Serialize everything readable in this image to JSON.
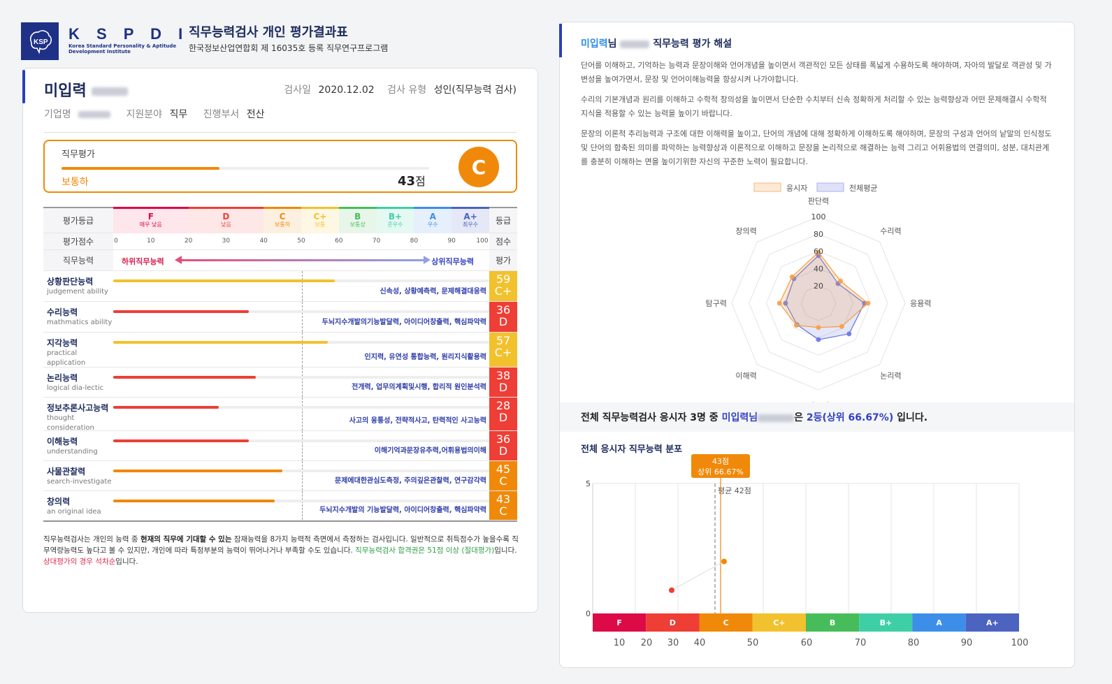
{
  "header": {
    "logo_text": "K S P D I",
    "logo_sub1": "Korea Standard Personality & Aptitude",
    "logo_sub2": "Development Institute",
    "title": "직무능력검사 개인 평가결과표",
    "subtitle": "한국정보산업연합회 제 16035호 등록 직무연구프로그램"
  },
  "profile": {
    "name": "미입력",
    "test_date_label": "검사일",
    "test_date": "2020.12.02",
    "test_type_label": "검사 유형",
    "test_type": "성인(직무능력 검사)",
    "company_label": "기업명",
    "field_label": "지원분야",
    "field": "직무",
    "dept_label": "진행부서",
    "dept": "전산"
  },
  "evaluation": {
    "title": "직무평가",
    "level": "보통하",
    "score": "43",
    "score_unit": "점",
    "score_pct": 43,
    "grade": "C",
    "color": "#f0890a"
  },
  "grade_table": {
    "row_labels": [
      "평가등급",
      "평가점수",
      "직무능력"
    ],
    "right_labels": [
      "등급",
      "점수",
      "평가"
    ],
    "grades": [
      {
        "g": "F",
        "desc": "매우 낮음",
        "from": 0,
        "to": 20,
        "color": "#dc0a46",
        "bg": "#fde6ec"
      },
      {
        "g": "D",
        "desc": "낮음",
        "from": 20,
        "to": 40,
        "color": "#ee3e36",
        "bg": "#fde8e7"
      },
      {
        "g": "C",
        "desc": "보통하",
        "from": 40,
        "to": 50,
        "color": "#f0890a",
        "bg": "#fdf0e1"
      },
      {
        "g": "C+",
        "desc": "보통",
        "from": 50,
        "to": 60,
        "color": "#f2c12e",
        "bg": "#fdf7e3"
      },
      {
        "g": "B",
        "desc": "보통상",
        "from": 60,
        "to": 70,
        "color": "#46bd5a",
        "bg": "#e8f6ea"
      },
      {
        "g": "B+",
        "desc": "준우수",
        "from": 70,
        "to": 80,
        "color": "#3fcfa6",
        "bg": "#e5f8f2"
      },
      {
        "g": "A",
        "desc": "우수",
        "from": 80,
        "to": 90,
        "color": "#3d8ee8",
        "bg": "#e6f0fc"
      },
      {
        "g": "A+",
        "desc": "최우수",
        "from": 90,
        "to": 100,
        "color": "#4c63bf",
        "bg": "#e5e8f6"
      }
    ],
    "ticks": [
      "0",
      "10",
      "20",
      "30",
      "40",
      "50",
      "60",
      "70",
      "80",
      "90",
      "100"
    ],
    "low_label": "하위직무능력",
    "high_label": "상위직무능력"
  },
  "skills": [
    {
      "ko": "상황판단능력",
      "en": "judgement ability",
      "score": 59,
      "grade": "C+",
      "color": "#f2c12e",
      "desc": "신속성, 상황예측력, 문제해결대응력"
    },
    {
      "ko": "수리능력",
      "en": "mathmatics ability",
      "score": 36,
      "grade": "D",
      "color": "#ee3e36",
      "desc": "두뇌지수개발의기능발달력, 아이디어창출력, 핵심파악력"
    },
    {
      "ko": "지각능력",
      "en": "practical application",
      "score": 57,
      "grade": "C+",
      "color": "#f2c12e",
      "desc": "인지력, 유연성 통합능력, 원리지식활용력"
    },
    {
      "ko": "논리능력",
      "en": "logical dia-lectic",
      "score": 38,
      "grade": "D",
      "color": "#ee3e36",
      "desc": "전개력, 업무의계획및시행, 합리적 원인분석력"
    },
    {
      "ko": "정보추론사고능력",
      "en": "thought consideration",
      "score": 28,
      "grade": "D",
      "color": "#ee3e36",
      "desc": "사고의 융통성, 전략적사고, 탄력적인 사고능력"
    },
    {
      "ko": "이해능력",
      "en": "understanding",
      "score": 36,
      "grade": "D",
      "color": "#ee3e36",
      "desc": "이해기억과문장유추력,어휘용법의이해"
    },
    {
      "ko": "사물관찰력",
      "en": "search-investigate",
      "score": 45,
      "grade": "C",
      "color": "#f0890a",
      "desc": "문제에대한관심도측정, 주의깊은관찰력, 연구감각력"
    },
    {
      "ko": "창의력",
      "en": "an original idea",
      "score": 43,
      "grade": "C",
      "color": "#f0890a",
      "desc": "두뇌지수개발의 기능발달력, 아이디어창출력, 핵심파악력"
    }
  ],
  "footnote": {
    "p1": "직무능력검사는 개인의 능력 중 ",
    "p1_bold": "현재의 직무에 기대할 수 있는",
    "p2": " 잠재능력을 8가지 능력적 측면에서 측정하는 검사입니다. 일반적으로 취득점수가 높을수록 직무역량능력도 높다고 볼 수 있지만, 개인에 따라 특정부분의 능력이 뛰어나거나 부족할 수도 있습니다. ",
    "green": "직무능력검사 합격권은 51점 이상 (절대평가)",
    "p3": "입니다. ",
    "red": "상대평가의 경우 석차순",
    "p4": "입니다."
  },
  "interpretation": {
    "name": "미입력",
    "suffix": "님",
    "title": "직무능력 평가 해설",
    "paragraphs": [
      "단어를 이해하고, 기억하는 능력과 문장이해와 언어개념을 높이면서 객관적인 모든 상태를 폭넓게 수용하도록 해야하며, 자아의 발달로 객관성 및 가변성을 높여가면서, 문장 및 언어이해능력을 향상시켜 나가야합니다.",
      "수리의 기본개념과 원리를 이해하고 수학적 창의성을 높이면서 단순한 수치부터 신속 정확하게 처리할 수 있는 능력향상과 어떤 문제해결시 수학적 지식을 적용할 수 있는 능력을 높이기 바랍니다.",
      "문장의 이론적 추리능력과 구조에 대한 이해력을 높이고, 단어의 개념에 대해 정확하게 이해하도록 해야하며, 문장의 구성과 언어의 낱말의 인식정도 및 단어의 함축된 의미를 파악하는 능력향상과 이론적으로 이해하고 문장을 논리적으로 해결하는 능력 그리고 어휘용법의 연결의미, 성분, 대치관계를 충분히 이해하는 면을 높이기위한 자신의 꾸준한 노력이 필요합니다."
    ]
  },
  "rank": {
    "prefix": "전체 직무능력검사 응시자 3명 중 ",
    "name": "미입력님",
    "mid": "은 ",
    "rank": "2등(상위 66.67%)",
    "suffix": " 입니다."
  },
  "distribution": {
    "title": "전체 응시자 직무능력 분포",
    "tooltip_score": "43점",
    "tooltip_rank": "상위 66.67%",
    "avg_label": "평균 42점"
  },
  "chart_data": [
    {
      "type": "radar",
      "title": "",
      "legend": [
        "응시자",
        "전체평균"
      ],
      "categories": [
        "판단력",
        "수리력",
        "응용력",
        "논리력",
        "사고력",
        "이해력",
        "탐구력",
        "창의력"
      ],
      "series": [
        {
          "name": "응시자",
          "values": [
            59,
            36,
            57,
            38,
            28,
            36,
            45,
            43
          ],
          "color": "#f5a04a"
        },
        {
          "name": "전체평균",
          "values": [
            55,
            32,
            53,
            50,
            42,
            35,
            38,
            40
          ],
          "color": "#6a78e0"
        }
      ],
      "ticks": [
        "20",
        "40",
        "60",
        "80",
        "100"
      ],
      "rlim": [
        0,
        100
      ]
    },
    {
      "type": "line",
      "title": "전체 응시자 직무능력 분포",
      "x": [
        30,
        45
      ],
      "values": [
        1,
        2
      ],
      "point_colors": [
        "#ee3e36",
        "#f0890a"
      ],
      "xlim": [
        0,
        100
      ],
      "ylim": [
        0,
        5
      ],
      "ytick_labels": [
        "0",
        "5"
      ],
      "xtick_labels": [
        "10",
        "20",
        "30",
        "40",
        "50",
        "60",
        "70",
        "80",
        "90",
        "100"
      ],
      "annotations": [
        {
          "x": 42,
          "label": "평균 42점",
          "style": "dashed"
        },
        {
          "x": 43,
          "label": "43점 상위 66.67%",
          "style": "solid"
        }
      ],
      "grade_band": [
        "F",
        "D",
        "C",
        "C+",
        "B",
        "B+",
        "A",
        "A+"
      ]
    }
  ]
}
